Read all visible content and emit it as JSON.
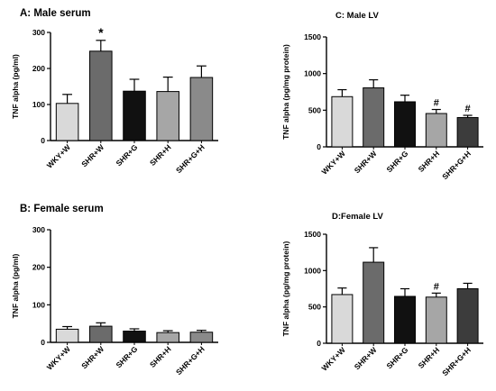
{
  "chart_data": [
    {
      "type": "bar",
      "title": "A: Male serum",
      "ylabel": "TNF alpha (pg/ml)",
      "xlabel": "",
      "ylim": [
        0,
        300
      ],
      "yticks": [
        0,
        100,
        200,
        300
      ],
      "grid": false,
      "categories": [
        "WKY+W",
        "SHR+W",
        "SHR+G",
        "SHR+H",
        "SHR+G+H"
      ],
      "values": [
        103,
        248,
        137,
        136,
        175
      ],
      "errors": [
        25,
        30,
        33,
        40,
        32
      ],
      "annotations": [
        "",
        "*",
        "",
        "",
        ""
      ],
      "bar_colors": [
        "#d9d9d9",
        "#6b6b6b",
        "#111111",
        "#a6a6a6",
        "#8a8a8a"
      ]
    },
    {
      "type": "bar",
      "title": "C: Male LV",
      "ylabel": "TNF alpha (pg/mg protein)",
      "xlabel": "",
      "ylim": [
        0,
        1500
      ],
      "yticks": [
        0,
        500,
        1000,
        1500
      ],
      "grid": false,
      "categories": [
        "WKY+W",
        "SHR+W",
        "SHR+G",
        "SHR+H",
        "SHR+G+H"
      ],
      "values": [
        685,
        805,
        615,
        455,
        400
      ],
      "errors": [
        95,
        110,
        90,
        55,
        30
      ],
      "annotations": [
        "",
        "",
        "",
        "#",
        "#"
      ],
      "bar_colors": [
        "#d9d9d9",
        "#6b6b6b",
        "#111111",
        "#a6a6a6",
        "#3c3c3c"
      ]
    },
    {
      "type": "bar",
      "title": "B: Female serum",
      "ylabel": "TNF alpha (pg/ml)",
      "xlabel": "",
      "ylim": [
        0,
        300
      ],
      "yticks": [
        0,
        100,
        200,
        300
      ],
      "grid": false,
      "categories": [
        "WKY+W",
        "SHR+W",
        "SHR+G",
        "SHR+H",
        "SHR+G+H"
      ],
      "values": [
        35,
        43,
        30,
        26,
        27
      ],
      "errors": [
        7,
        9,
        6,
        5,
        5
      ],
      "annotations": [
        "",
        "",
        "",
        "",
        ""
      ],
      "bar_colors": [
        "#d9d9d9",
        "#6b6b6b",
        "#111111",
        "#a6a6a6",
        "#8a8a8a"
      ]
    },
    {
      "type": "bar",
      "title": "D:Female LV",
      "ylabel": "TNF alpha (pg/mg protein)",
      "xlabel": "",
      "ylim": [
        0,
        1500
      ],
      "yticks": [
        0,
        500,
        1000,
        1500
      ],
      "grid": false,
      "categories": [
        "WKY+W",
        "SHR+W",
        "SHR+G",
        "SHR+H",
        "SHR+G+H"
      ],
      "values": [
        670,
        1115,
        645,
        635,
        750
      ],
      "errors": [
        90,
        200,
        105,
        55,
        75
      ],
      "annotations": [
        "",
        "",
        "",
        "#",
        ""
      ],
      "bar_colors": [
        "#d9d9d9",
        "#6b6b6b",
        "#111111",
        "#a6a6a6",
        "#3c3c3c"
      ]
    }
  ]
}
